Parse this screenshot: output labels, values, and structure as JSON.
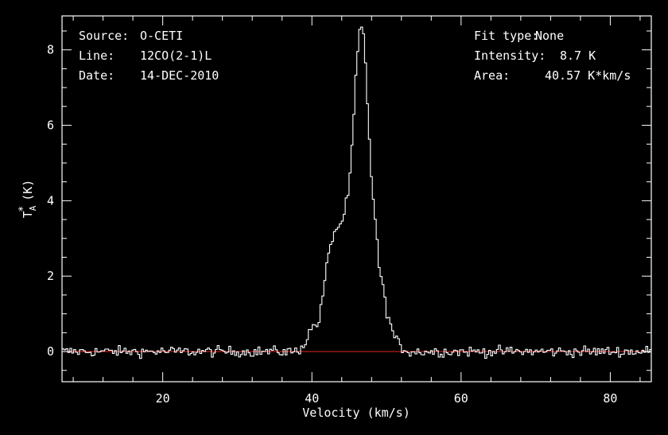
{
  "chart_data": {
    "type": "line",
    "title": "",
    "xlabel": "Velocity (km/s)",
    "ylabel_main": "T",
    "ylabel_sub": "A",
    "ylabel_sup": "*",
    "ylabel_unit": "(K)",
    "xlim": [
      6.5,
      85.5
    ],
    "ylim": [
      -0.8,
      8.9
    ],
    "xticks": [
      20,
      40,
      60,
      80
    ],
    "yticks": [
      0,
      2,
      4,
      6,
      8
    ],
    "grid": false,
    "baseline": 0,
    "colors": {
      "spectrum": "#ffffff",
      "baseline": "#cc2222",
      "axes": "#ffffff",
      "background": "#000000"
    },
    "info_left": [
      {
        "key": "Source:",
        "value": "O-CETI"
      },
      {
        "key": "Line:",
        "value": "12CO(2-1)L"
      },
      {
        "key": "Date:",
        "value": "14-DEC-2010"
      }
    ],
    "info_right": [
      {
        "key": "Fit type:",
        "value": "None"
      },
      {
        "key": "Intensity:",
        "value": "8.7 K"
      },
      {
        "key": "Area:",
        "value": "40.57 K*km/s"
      }
    ],
    "profile": {
      "x": [
        38.0,
        39.0,
        40.0,
        41.0,
        42.0,
        43.0,
        44.0,
        45.0,
        45.5,
        46.0,
        46.5,
        47.0,
        47.5,
        48.0,
        49.0,
        50.0,
        51.0,
        52.0,
        53.0
      ],
      "y": [
        0.0,
        0.2,
        0.65,
        0.8,
        2.3,
        3.2,
        3.4,
        4.3,
        5.8,
        7.6,
        8.7,
        8.3,
        6.4,
        4.6,
        2.3,
        1.1,
        0.4,
        0.1,
        0.0
      ]
    },
    "noise_rms": 0.07,
    "channel_width": 0.26
  }
}
